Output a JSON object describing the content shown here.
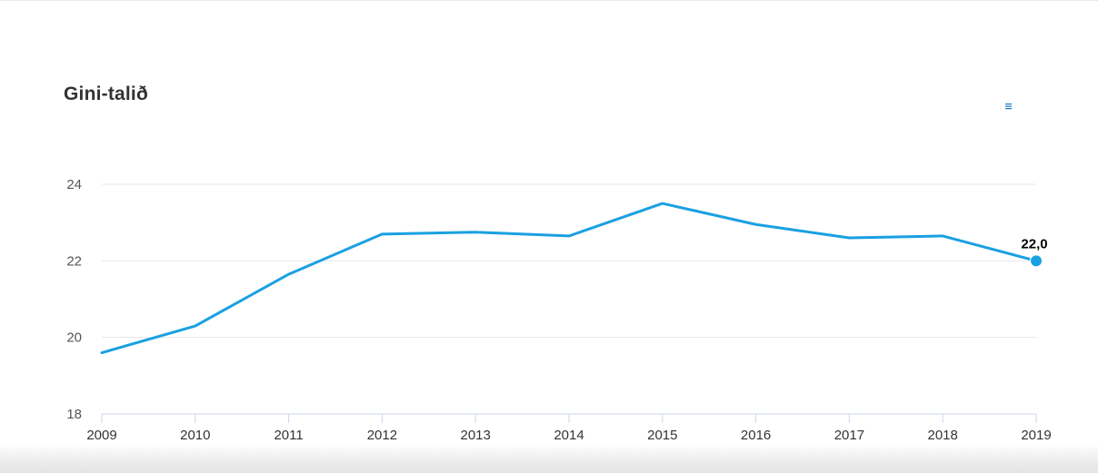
{
  "chart_data": {
    "type": "line",
    "title": "Gini-talið",
    "x": [
      "2009",
      "2010",
      "2011",
      "2012",
      "2013",
      "2014",
      "2015",
      "2016",
      "2017",
      "2018",
      "2019"
    ],
    "series": [
      {
        "values": [
          19.6,
          20.3,
          21.65,
          22.7,
          22.75,
          22.65,
          23.5,
          22.95,
          22.6,
          22.65,
          22.0
        ],
        "color": "#1aa0e2"
      }
    ],
    "data_labels": [
      {
        "x": "2019",
        "text": "22,0"
      }
    ],
    "yticks": [
      "18",
      "20",
      "22",
      "24"
    ],
    "ylim": [
      18,
      24.6
    ],
    "grid": true,
    "xlabel": "",
    "ylabel": ""
  },
  "ui": {
    "menu_icon": "hamburger-menu-icon",
    "menu_color": "#1a7bbf"
  }
}
